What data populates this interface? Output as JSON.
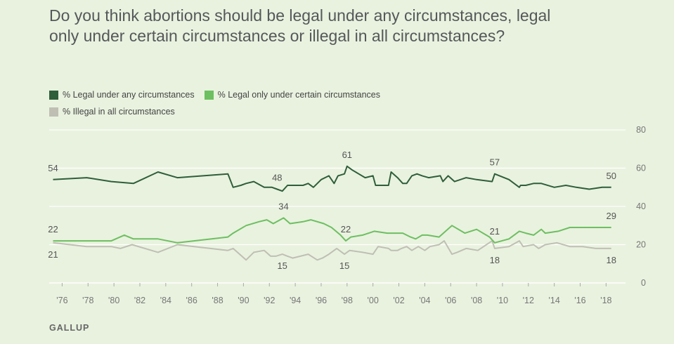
{
  "title": "Do you think abortions should be legal under any circumstances, legal only under certain circumstances or illegal in all circumstances?",
  "footer": "GALLUP",
  "chart_data": {
    "type": "line",
    "title": "Do you think abortions should be legal under any circumstances, legal only under certain circumstances or illegal in all circumstances?",
    "xlabel": "",
    "ylabel": "",
    "xlim": [
      1975,
      2019
    ],
    "ylim": [
      0,
      80
    ],
    "yticks": [
      0,
      20,
      40,
      60,
      80
    ],
    "xticks": [
      1976,
      1978,
      1980,
      1982,
      1984,
      1986,
      1988,
      1990,
      1992,
      1994,
      1996,
      1998,
      2000,
      2002,
      2004,
      2006,
      2008,
      2010,
      2012,
      2014,
      2016,
      2018
    ],
    "xtick_labels": [
      "'76",
      "'78",
      "'80",
      "'82",
      "'84",
      "'86",
      "'88",
      "'90",
      "'92",
      "'94",
      "'96",
      "'98",
      "'00",
      "'02",
      "'04",
      "'06",
      "'08",
      "'10",
      "'12",
      "'14",
      "'16",
      "'18"
    ],
    "legend": "top-left",
    "series": [
      {
        "name": "% Legal under any circumstances",
        "color": "#2e5e3a",
        "x": [
          1975.3,
          1977.9,
          1979.8,
          1981.5,
          1983.4,
          1984.9,
          1988.8,
          1989.2,
          1989.8,
          1990.2,
          1990.8,
          1991.6,
          1992.2,
          1992.6,
          1993.0,
          1993.4,
          1994.1,
          1994.6,
          1995.0,
          1995.4,
          1996.0,
          1996.6,
          1997.0,
          1997.3,
          1997.8,
          1998.0,
          1998.4,
          1999.4,
          2000.0,
          2000.2,
          2001.2,
          2001.4,
          2001.9,
          2002.3,
          2002.6,
          2003.0,
          2003.4,
          2003.8,
          2004.3,
          2005.2,
          2005.4,
          2005.8,
          2006.3,
          2007.2,
          2008.0,
          2009.2,
          2009.4,
          2010.5,
          2011.3,
          2011.4,
          2011.8,
          2012.4,
          2013.0,
          2014.0,
          2014.9,
          2015.7,
          2016.7,
          2017.7,
          2018.4
        ],
        "values": [
          54,
          55,
          53,
          52,
          58,
          55,
          57,
          50,
          51,
          52,
          53,
          50,
          50,
          49,
          48,
          51,
          51,
          51,
          52,
          50,
          54,
          56,
          52,
          56,
          57,
          61,
          59,
          55,
          56,
          51,
          51,
          58,
          55,
          52,
          52,
          56,
          57,
          56,
          55,
          56,
          53,
          56,
          53,
          55,
          54,
          53,
          57,
          54,
          50,
          51,
          51,
          52,
          52,
          50,
          51,
          50,
          49,
          50,
          50
        ]
      },
      {
        "name": "% Legal only under certain circumstances",
        "color": "#6dbf61",
        "x": [
          1975.3,
          1977.9,
          1979.8,
          1980.8,
          1981.5,
          1983.4,
          1984.9,
          1988.8,
          1989.2,
          1990.2,
          1991.2,
          1991.8,
          1992.3,
          1993.1,
          1993.6,
          1994.6,
          1995.2,
          1996.2,
          1996.8,
          1997.5,
          1997.9,
          1998.3,
          1999.2,
          2000.1,
          2001.1,
          2001.8,
          2002.3,
          2002.9,
          2003.3,
          2003.8,
          2004.2,
          2005.1,
          2006.1,
          2007.1,
          2008.0,
          2009.0,
          2009.4,
          2010.5,
          2011.3,
          2011.8,
          2012.4,
          2013.0,
          2013.3,
          2014.3,
          2015.2,
          2016.2,
          2017.2,
          2018.4
        ],
        "values": [
          22,
          22,
          22,
          25,
          23,
          23,
          21,
          24,
          26,
          30,
          32,
          33,
          31,
          34,
          31,
          32,
          33,
          31,
          29,
          25,
          22,
          24,
          25,
          27,
          26,
          26,
          26,
          24,
          23,
          25,
          25,
          24,
          30,
          26,
          28,
          24,
          21,
          23,
          27,
          26,
          25,
          28,
          26,
          27,
          29,
          29,
          29,
          29
        ]
      },
      {
        "name": "% Illegal in all circumstances",
        "color": "#bfbfb4",
        "x": [
          1975.3,
          1977.9,
          1979.8,
          1980.5,
          1981.4,
          1983.4,
          1984.9,
          1988.8,
          1989.2,
          1990.2,
          1990.8,
          1991.6,
          1992.1,
          1992.5,
          1993.0,
          1993.4,
          1993.8,
          1994.4,
          1995.0,
          1995.7,
          1996.1,
          1996.6,
          1997.2,
          1997.8,
          1998.2,
          1999.2,
          2000.0,
          2000.4,
          2001.2,
          2001.4,
          2001.9,
          2002.2,
          2002.6,
          2003.0,
          2003.5,
          2004.0,
          2004.4,
          2005.1,
          2005.5,
          2006.1,
          2006.5,
          2007.2,
          2008.1,
          2009.2,
          2009.4,
          2010.5,
          2011.3,
          2011.6,
          2012.4,
          2012.8,
          2013.3,
          2014.2,
          2015.2,
          2016.2,
          2017.2,
          2018.4
        ],
        "values": [
          21,
          19,
          19,
          18,
          20,
          16,
          20,
          17,
          18,
          12,
          16,
          17,
          14,
          14,
          15,
          14,
          13,
          14,
          15,
          12,
          13,
          15,
          18,
          15,
          17,
          16,
          15,
          19,
          18,
          17,
          17,
          18,
          19,
          17,
          19,
          17,
          19,
          20,
          22,
          15,
          16,
          18,
          17,
          22,
          18,
          19,
          22,
          19,
          20,
          18,
          20,
          21,
          19,
          19,
          18,
          18
        ]
      }
    ],
    "annotations": [
      {
        "series": 0,
        "x": 1975.3,
        "text": "54",
        "pos": "above"
      },
      {
        "series": 0,
        "x": 1992.8,
        "text": "48",
        "pos": "above"
      },
      {
        "series": 0,
        "x": 1998.0,
        "text": "61",
        "pos": "above"
      },
      {
        "series": 0,
        "x": 2009.4,
        "text": "57",
        "pos": "above"
      },
      {
        "series": 0,
        "x": 2018.4,
        "text": "50",
        "pos": "above"
      },
      {
        "series": 1,
        "x": 1975.3,
        "text": "22",
        "pos": "above"
      },
      {
        "series": 1,
        "x": 1993.1,
        "text": "34",
        "pos": "above"
      },
      {
        "series": 1,
        "x": 1997.9,
        "text": "22",
        "pos": "above"
      },
      {
        "series": 1,
        "x": 2009.4,
        "text": "21",
        "pos": "above"
      },
      {
        "series": 1,
        "x": 2018.4,
        "text": "29",
        "pos": "above"
      },
      {
        "series": 2,
        "x": 1975.3,
        "text": "21",
        "pos": "below"
      },
      {
        "series": 2,
        "x": 1993.0,
        "text": "15",
        "pos": "below"
      },
      {
        "series": 2,
        "x": 1997.8,
        "text": "15",
        "pos": "below"
      },
      {
        "series": 2,
        "x": 2009.4,
        "text": "18",
        "pos": "below"
      },
      {
        "series": 2,
        "x": 2018.4,
        "text": "18",
        "pos": "below"
      }
    ]
  }
}
